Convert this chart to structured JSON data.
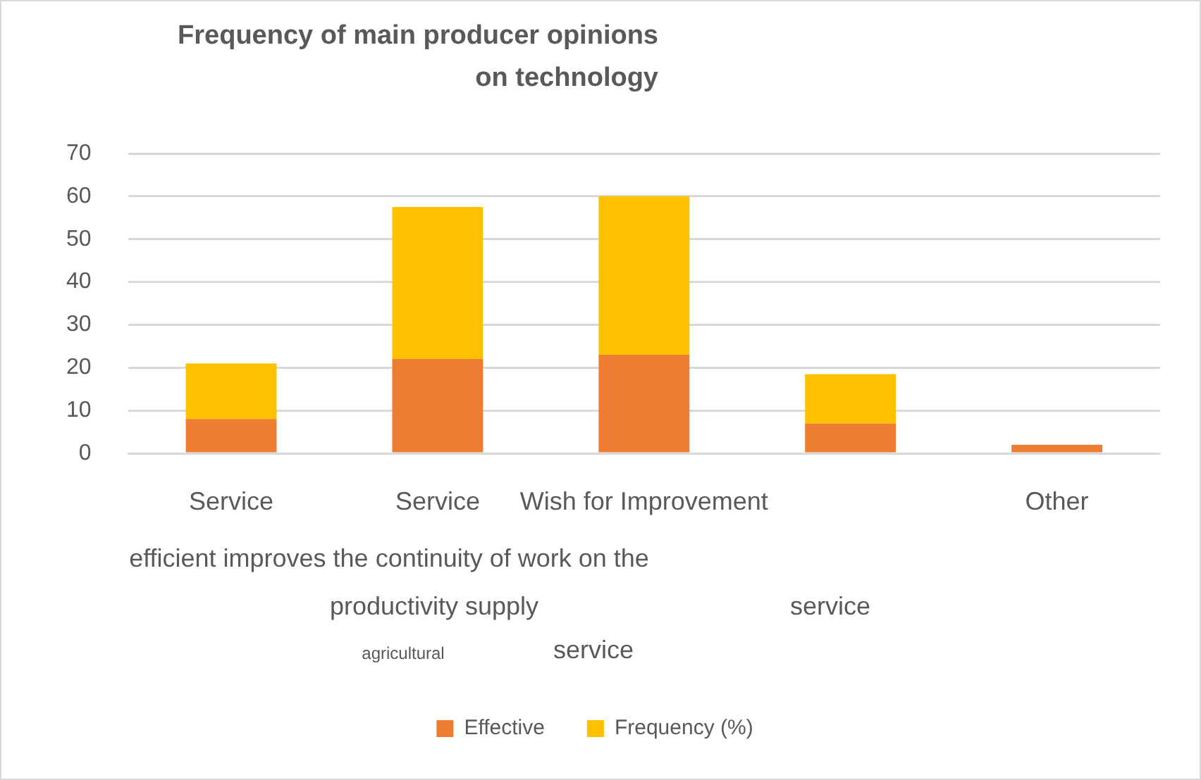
{
  "chart_data": {
    "type": "bar",
    "title": "Frequency of main producer opinions on technology",
    "categories": [
      "Service",
      "Service",
      "Wish for Improvement",
      null,
      "Other"
    ],
    "series": [
      {
        "name": "Effective",
        "color": "#ed7d31",
        "values": [
          8,
          22,
          23,
          7,
          2
        ]
      },
      {
        "name": "Frequency (%)",
        "color": "#ffc000",
        "values": [
          13,
          35.5,
          37,
          11.5,
          0
        ]
      }
    ],
    "stacked": true,
    "ylim": [
      0,
      70
    ],
    "yticks": [
      0,
      10,
      20,
      30,
      40,
      50,
      60,
      70
    ],
    "grid": "y",
    "legend": "bottom",
    "annotations": [
      "efficient improves the continuity of work on the",
      "productivity supply",
      "agricultural",
      "service",
      "service"
    ]
  }
}
